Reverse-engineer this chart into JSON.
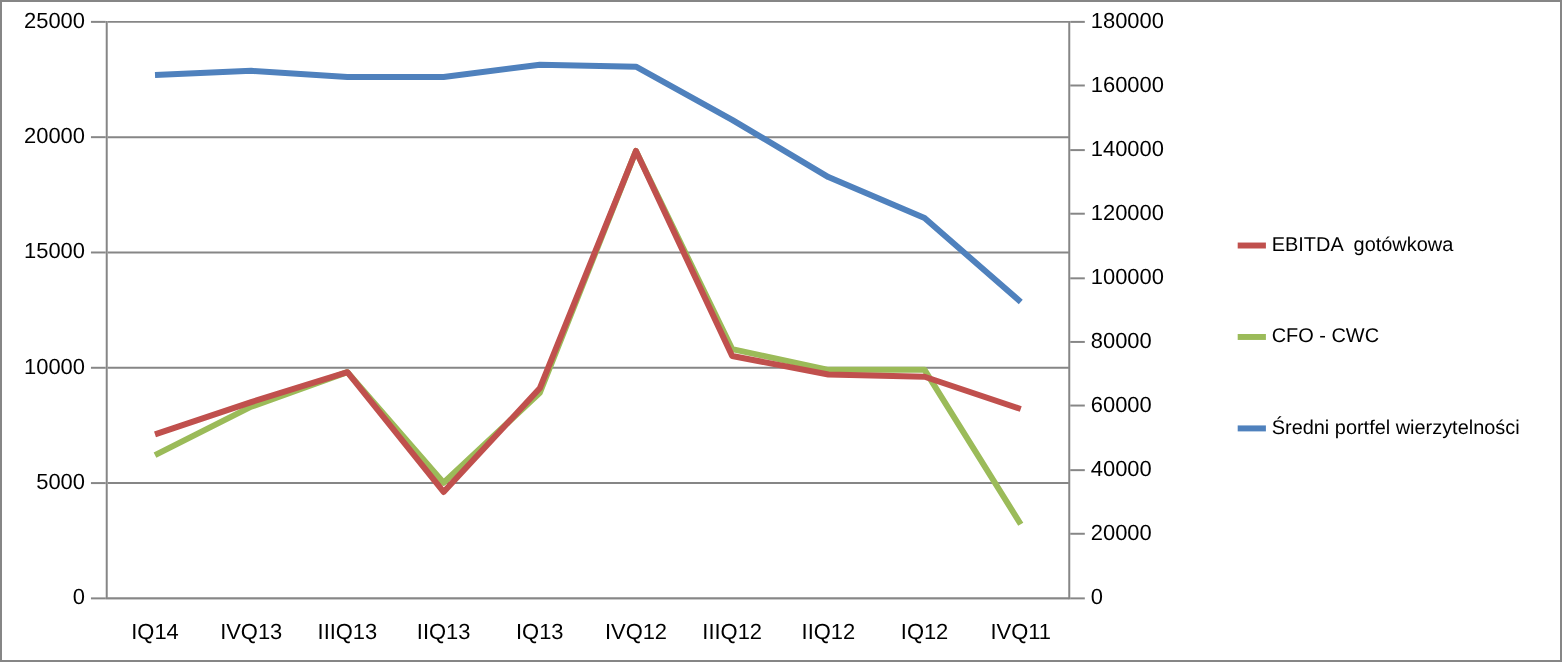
{
  "chart_data": {
    "type": "line",
    "categories": [
      "IQ14",
      "IVQ13",
      "IIIQ13",
      "IIQ13",
      "IQ13",
      "IVQ12",
      "IIIQ12",
      "IIQ12",
      "IQ12",
      "IVQ11"
    ],
    "series": [
      {
        "name": "EBITDA  gotówkowa",
        "color": "#c0504d",
        "values": [
          7100,
          8500,
          9800,
          4600,
          9100,
          19400,
          10500,
          9700,
          9600,
          8200
        ]
      },
      {
        "name": "CFO - CWC",
        "color": "#9bbb59",
        "values": [
          6200,
          8300,
          9800,
          5000,
          8900,
          19400,
          10800,
          9900,
          9900,
          3200
        ]
      },
      {
        "name": "Średni portfel wierzytelności",
        "color": "#4f81bd",
        "axis": "y2",
        "values": [
          163400,
          164700,
          162800,
          162800,
          166600,
          166000,
          149400,
          131500,
          118700,
          92500
        ]
      }
    ],
    "ylim": [
      0,
      25000
    ],
    "yticks": [
      0,
      5000,
      10000,
      15000,
      20000,
      25000
    ],
    "y2lim": [
      0,
      180000
    ],
    "y2ticks": [
      0,
      20000,
      40000,
      60000,
      80000,
      100000,
      120000,
      140000,
      160000,
      180000
    ],
    "grid": "y",
    "legend": "right",
    "marker": "none"
  }
}
